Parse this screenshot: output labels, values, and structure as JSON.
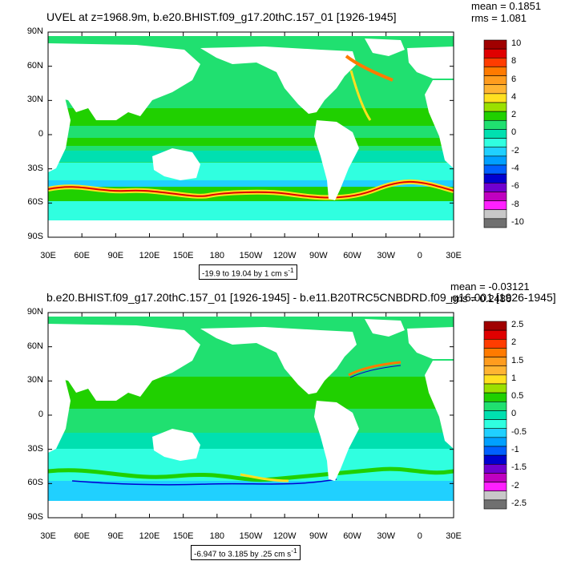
{
  "panels": [
    {
      "title": "UVEL at z=1968.9m, b.e20.BHIST.f09_g17.20thC.157_01 [1926-1945]",
      "stats": {
        "mean": "mean = 0.1851",
        "rms": "rms = 1.081"
      },
      "range_label": "-19.9 to 19.04 by 1 cm s",
      "range_unit_exp": "-1",
      "colorbar_labels": [
        "10",
        "8",
        "6",
        "4",
        "2",
        "0",
        "-2",
        "-4",
        "-6",
        "-8",
        "-10"
      ]
    },
    {
      "title": "b.e20.BHIST.f09_g17.20thC.157_01 [1926-1945] - b.e11.B20TRC5CNBDRD.f09_g16.001 [1926-1945]",
      "stats": {
        "mean": "mean = -0.03121",
        "rms": "rms = 0.2486"
      },
      "range_label": "-6.947 to 3.185 by .25 cm s",
      "range_unit_exp": "-1",
      "colorbar_labels": [
        "2.5",
        "2",
        "1.5",
        "1",
        "0.5",
        "0",
        "-0.5",
        "-1",
        "-1.5",
        "-2",
        "-2.5"
      ]
    }
  ],
  "lat_labels": [
    "90N",
    "60N",
    "30N",
    "0",
    "30S",
    "60S",
    "90S"
  ],
  "lon_labels": [
    "30E",
    "60E",
    "90E",
    "120E",
    "150E",
    "180",
    "150W",
    "120W",
    "90W",
    "60W",
    "30W",
    "0",
    "30E"
  ],
  "colorbar_colors": [
    "#a00000",
    "#e00000",
    "#ff3c00",
    "#ff7a00",
    "#ff9c1e",
    "#ffb432",
    "#ffe020",
    "#9be000",
    "#20d000",
    "#20e070",
    "#00e0b0",
    "#30ffe0",
    "#20d0ff",
    "#00a0ff",
    "#0060ff",
    "#0000d0",
    "#7000d0",
    "#c000c0",
    "#ff20ff",
    "#c8c8c8",
    "#707070"
  ],
  "map_colors": {
    "ocean_base": "#30ffe0",
    "band_green": "#20d000",
    "band_light": "#20e070",
    "band_teal": "#00e0b0",
    "yellow": "#ffe020",
    "orange": "#ff7a00",
    "red": "#e00000",
    "blue": "#0000d0",
    "cyan": "#20d0ff"
  }
}
